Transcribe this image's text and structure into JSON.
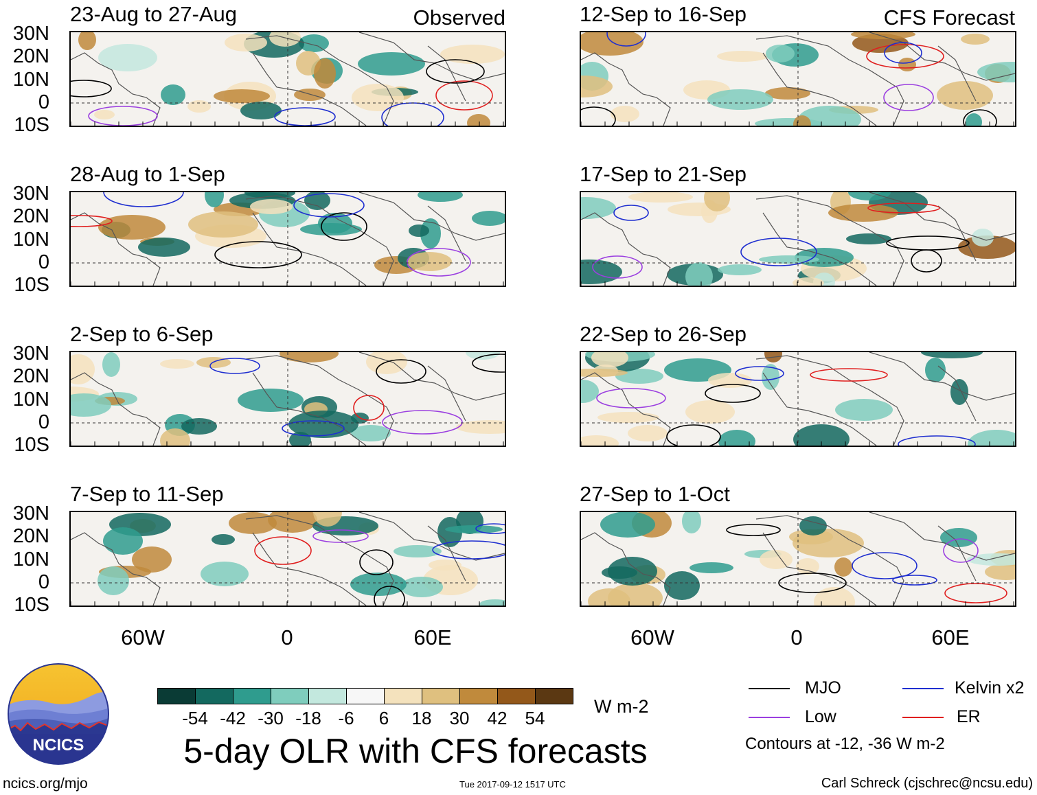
{
  "corner_labels": {
    "left": "Observed",
    "right": "CFS Forecast"
  },
  "panels": {
    "left": [
      "23-Aug to 27-Aug",
      "28-Aug to 1-Sep",
      "2-Sep to 6-Sep",
      "7-Sep to 11-Sep"
    ],
    "right": [
      "12-Sep to 16-Sep",
      "17-Sep to 21-Sep",
      "22-Sep to 26-Sep",
      "27-Sep to 1-Oct"
    ]
  },
  "lat_labels": [
    "30N",
    "20N",
    "10N",
    "0",
    "10S"
  ],
  "lon_labels": [
    "60W",
    "0",
    "60E"
  ],
  "colorbar": {
    "colors": [
      "#0a3b35",
      "#13695f",
      "#2f9c8e",
      "#7fcdbd",
      "#c3e8de",
      "#f7f7f7",
      "#f4e2bd",
      "#dfc07f",
      "#c08a3c",
      "#93581a",
      "#5b3812"
    ],
    "labels": [
      "-54",
      "-42",
      "-30",
      "-18",
      "-6",
      "6",
      "18",
      "30",
      "42",
      "54"
    ],
    "units": "W m-2"
  },
  "title": "5-day OLR with CFS forecasts",
  "logo": {
    "text": "NCICS"
  },
  "legend": {
    "items": [
      {
        "label": "MJO",
        "color": "#000000"
      },
      {
        "label": "Kelvin x2",
        "color": "#1f2fd0"
      },
      {
        "label": "Low",
        "color": "#9b3fe0"
      },
      {
        "label": "ER",
        "color": "#e01f1f"
      }
    ],
    "note": "Contours at -12, -36 W m-2"
  },
  "footer": {
    "url": "ncics.org/mjo",
    "timestamp": "Tue 2017-09-12 1517 UTC",
    "credit": "Carl Schreck (cjschrec@ncsu.edu)"
  }
}
